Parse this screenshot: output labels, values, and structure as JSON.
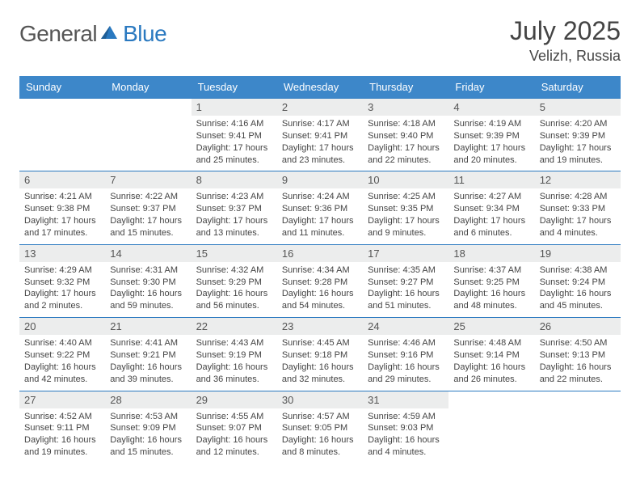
{
  "logo": {
    "part1": "General",
    "part2": "Blue"
  },
  "title": "July 2025",
  "location": "Velizh, Russia",
  "colors": {
    "header_bg": "#3d87c9",
    "header_text": "#ffffff",
    "daynum_bg": "#eceded",
    "rule": "#2a79c0",
    "text": "#444444",
    "logo_gray": "#555555",
    "logo_blue": "#2a79c0",
    "page_bg": "#ffffff"
  },
  "day_names": [
    "Sunday",
    "Monday",
    "Tuesday",
    "Wednesday",
    "Thursday",
    "Friday",
    "Saturday"
  ],
  "weeks": [
    [
      null,
      null,
      {
        "n": "1",
        "sr": "4:16 AM",
        "ss": "9:41 PM",
        "dl": "17 hours and 25 minutes."
      },
      {
        "n": "2",
        "sr": "4:17 AM",
        "ss": "9:41 PM",
        "dl": "17 hours and 23 minutes."
      },
      {
        "n": "3",
        "sr": "4:18 AM",
        "ss": "9:40 PM",
        "dl": "17 hours and 22 minutes."
      },
      {
        "n": "4",
        "sr": "4:19 AM",
        "ss": "9:39 PM",
        "dl": "17 hours and 20 minutes."
      },
      {
        "n": "5",
        "sr": "4:20 AM",
        "ss": "9:39 PM",
        "dl": "17 hours and 19 minutes."
      }
    ],
    [
      {
        "n": "6",
        "sr": "4:21 AM",
        "ss": "9:38 PM",
        "dl": "17 hours and 17 minutes."
      },
      {
        "n": "7",
        "sr": "4:22 AM",
        "ss": "9:37 PM",
        "dl": "17 hours and 15 minutes."
      },
      {
        "n": "8",
        "sr": "4:23 AM",
        "ss": "9:37 PM",
        "dl": "17 hours and 13 minutes."
      },
      {
        "n": "9",
        "sr": "4:24 AM",
        "ss": "9:36 PM",
        "dl": "17 hours and 11 minutes."
      },
      {
        "n": "10",
        "sr": "4:25 AM",
        "ss": "9:35 PM",
        "dl": "17 hours and 9 minutes."
      },
      {
        "n": "11",
        "sr": "4:27 AM",
        "ss": "9:34 PM",
        "dl": "17 hours and 6 minutes."
      },
      {
        "n": "12",
        "sr": "4:28 AM",
        "ss": "9:33 PM",
        "dl": "17 hours and 4 minutes."
      }
    ],
    [
      {
        "n": "13",
        "sr": "4:29 AM",
        "ss": "9:32 PM",
        "dl": "17 hours and 2 minutes."
      },
      {
        "n": "14",
        "sr": "4:31 AM",
        "ss": "9:30 PM",
        "dl": "16 hours and 59 minutes."
      },
      {
        "n": "15",
        "sr": "4:32 AM",
        "ss": "9:29 PM",
        "dl": "16 hours and 56 minutes."
      },
      {
        "n": "16",
        "sr": "4:34 AM",
        "ss": "9:28 PM",
        "dl": "16 hours and 54 minutes."
      },
      {
        "n": "17",
        "sr": "4:35 AM",
        "ss": "9:27 PM",
        "dl": "16 hours and 51 minutes."
      },
      {
        "n": "18",
        "sr": "4:37 AM",
        "ss": "9:25 PM",
        "dl": "16 hours and 48 minutes."
      },
      {
        "n": "19",
        "sr": "4:38 AM",
        "ss": "9:24 PM",
        "dl": "16 hours and 45 minutes."
      }
    ],
    [
      {
        "n": "20",
        "sr": "4:40 AM",
        "ss": "9:22 PM",
        "dl": "16 hours and 42 minutes."
      },
      {
        "n": "21",
        "sr": "4:41 AM",
        "ss": "9:21 PM",
        "dl": "16 hours and 39 minutes."
      },
      {
        "n": "22",
        "sr": "4:43 AM",
        "ss": "9:19 PM",
        "dl": "16 hours and 36 minutes."
      },
      {
        "n": "23",
        "sr": "4:45 AM",
        "ss": "9:18 PM",
        "dl": "16 hours and 32 minutes."
      },
      {
        "n": "24",
        "sr": "4:46 AM",
        "ss": "9:16 PM",
        "dl": "16 hours and 29 minutes."
      },
      {
        "n": "25",
        "sr": "4:48 AM",
        "ss": "9:14 PM",
        "dl": "16 hours and 26 minutes."
      },
      {
        "n": "26",
        "sr": "4:50 AM",
        "ss": "9:13 PM",
        "dl": "16 hours and 22 minutes."
      }
    ],
    [
      {
        "n": "27",
        "sr": "4:52 AM",
        "ss": "9:11 PM",
        "dl": "16 hours and 19 minutes."
      },
      {
        "n": "28",
        "sr": "4:53 AM",
        "ss": "9:09 PM",
        "dl": "16 hours and 15 minutes."
      },
      {
        "n": "29",
        "sr": "4:55 AM",
        "ss": "9:07 PM",
        "dl": "16 hours and 12 minutes."
      },
      {
        "n": "30",
        "sr": "4:57 AM",
        "ss": "9:05 PM",
        "dl": "16 hours and 8 minutes."
      },
      {
        "n": "31",
        "sr": "4:59 AM",
        "ss": "9:03 PM",
        "dl": "16 hours and 4 minutes."
      },
      null,
      null
    ]
  ],
  "labels": {
    "sunrise": "Sunrise: ",
    "sunset": "Sunset: ",
    "daylight": "Daylight: "
  }
}
